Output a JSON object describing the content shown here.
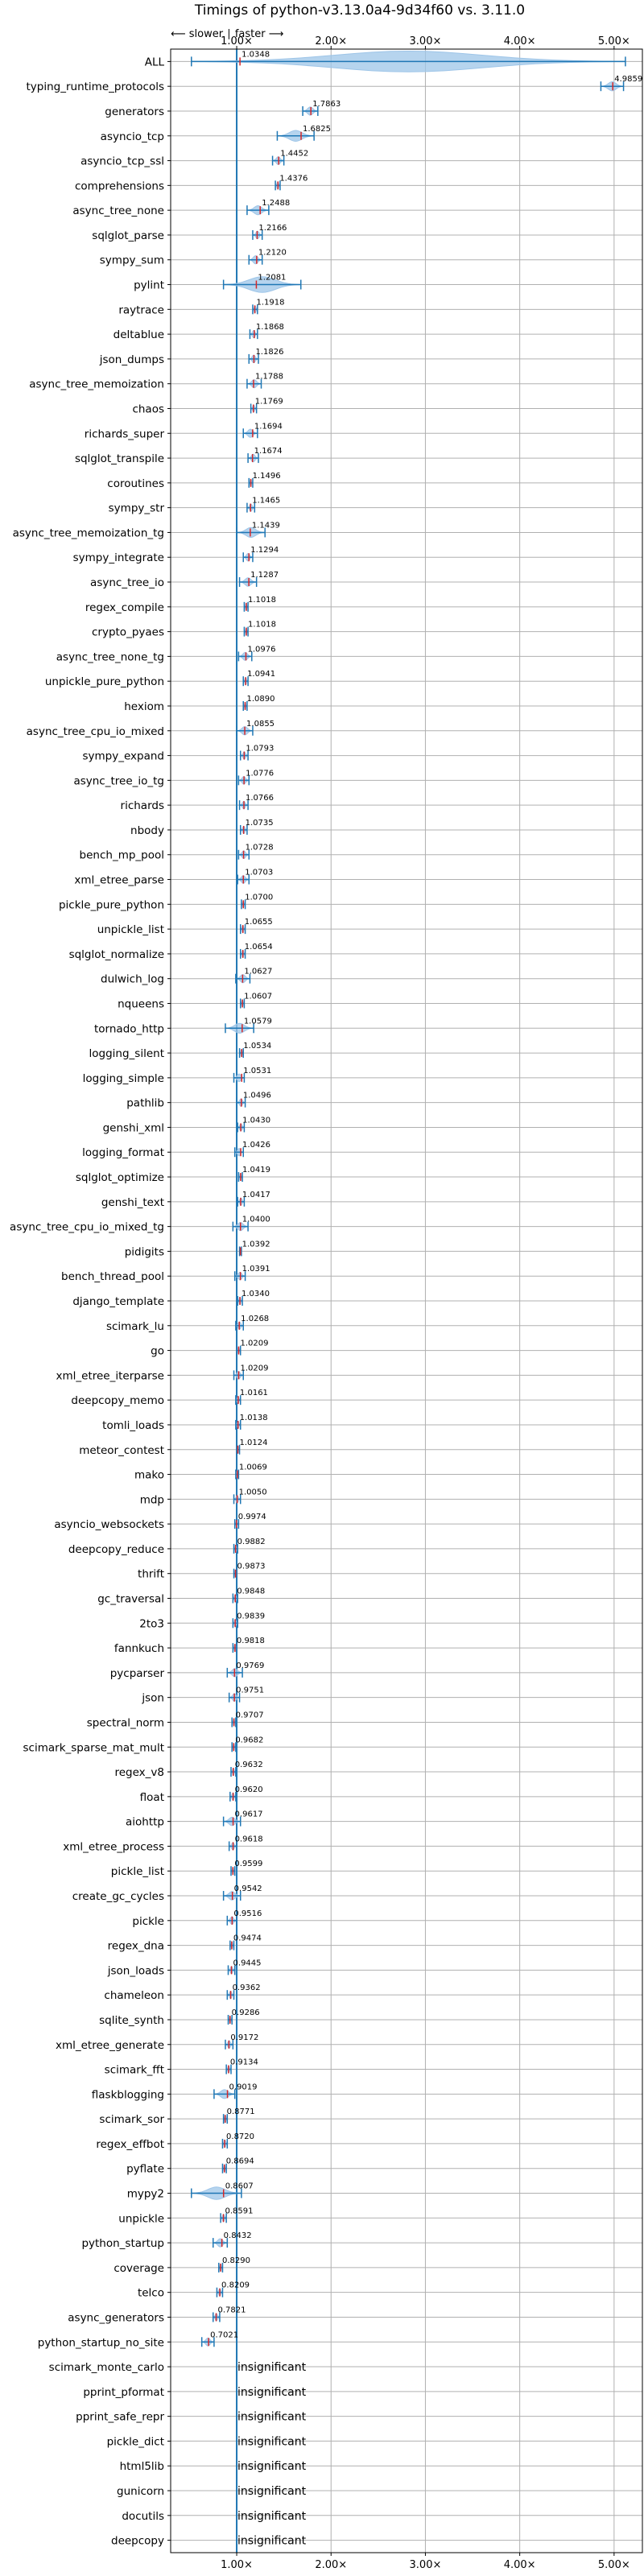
{
  "chart_data": {
    "type": "violin",
    "title": "Timings of python-v3.13.0a4-9d34f60 vs. 3.11.0",
    "direction_label": "⟵ slower ∣ faster ⟶",
    "x_ticks": [
      "1.00×",
      "2.00×",
      "3.00×",
      "4.00×",
      "5.00×"
    ],
    "x_tick_values": [
      1,
      2,
      3,
      4,
      5
    ],
    "xlim": [
      0.3,
      5.3
    ],
    "reference_line": 1.0,
    "grid": true,
    "insignificant_label": "insignificant",
    "accent_color": "#1f77b4",
    "violin_color": "#9ec5e8",
    "mean_color": "#d62728",
    "rows": [
      {
        "name": "ALL",
        "label": "1.0348",
        "value": 1.0348,
        "lo": 0.52,
        "hi": 5.12
      },
      {
        "name": "typing_runtime_protocols",
        "label": "4.9859",
        "value": 4.9859,
        "lo": 4.86,
        "hi": 5.1
      },
      {
        "name": "generators",
        "label": "1.7863",
        "value": 1.7863,
        "lo": 1.7,
        "hi": 1.86
      },
      {
        "name": "asyncio_tcp",
        "label": "1.6825",
        "value": 1.6825,
        "lo": 1.43,
        "hi": 1.82
      },
      {
        "name": "asyncio_tcp_ssl",
        "label": "1.4452",
        "value": 1.4452,
        "lo": 1.38,
        "hi": 1.5
      },
      {
        "name": "comprehensions",
        "label": "1.4376",
        "value": 1.4376,
        "lo": 1.41,
        "hi": 1.46
      },
      {
        "name": "async_tree_none",
        "label": "1.2488",
        "value": 1.2488,
        "lo": 1.11,
        "hi": 1.34
      },
      {
        "name": "sqlglot_parse",
        "label": "1.2166",
        "value": 1.2166,
        "lo": 1.17,
        "hi": 1.27
      },
      {
        "name": "sympy_sum",
        "label": "1.2120",
        "value": 1.212,
        "lo": 1.13,
        "hi": 1.27
      },
      {
        "name": "pylint",
        "label": "1.2081",
        "value": 1.2081,
        "lo": 0.86,
        "hi": 1.68
      },
      {
        "name": "raytrace",
        "label": "1.1918",
        "value": 1.1918,
        "lo": 1.17,
        "hi": 1.22
      },
      {
        "name": "deltablue",
        "label": "1.1868",
        "value": 1.1868,
        "lo": 1.14,
        "hi": 1.22
      },
      {
        "name": "json_dumps",
        "label": "1.1826",
        "value": 1.1826,
        "lo": 1.13,
        "hi": 1.23
      },
      {
        "name": "async_tree_memoization",
        "label": "1.1788",
        "value": 1.1788,
        "lo": 1.11,
        "hi": 1.26
      },
      {
        "name": "chaos",
        "label": "1.1769",
        "value": 1.1769,
        "lo": 1.15,
        "hi": 1.21
      },
      {
        "name": "richards_super",
        "label": "1.1694",
        "value": 1.1694,
        "lo": 1.07,
        "hi": 1.22
      },
      {
        "name": "sqlglot_transpile",
        "label": "1.1674",
        "value": 1.1674,
        "lo": 1.12,
        "hi": 1.23
      },
      {
        "name": "coroutines",
        "label": "1.1496",
        "value": 1.1496,
        "lo": 1.13,
        "hi": 1.17
      },
      {
        "name": "sympy_str",
        "label": "1.1465",
        "value": 1.1465,
        "lo": 1.11,
        "hi": 1.19
      },
      {
        "name": "async_tree_memoization_tg",
        "label": "1.1439",
        "value": 1.1439,
        "lo": 1.0,
        "hi": 1.3
      },
      {
        "name": "sympy_integrate",
        "label": "1.1294",
        "value": 1.1294,
        "lo": 1.07,
        "hi": 1.17
      },
      {
        "name": "async_tree_io",
        "label": "1.1287",
        "value": 1.1287,
        "lo": 1.03,
        "hi": 1.21
      },
      {
        "name": "regex_compile",
        "label": "1.1018",
        "value": 1.1018,
        "lo": 1.08,
        "hi": 1.12
      },
      {
        "name": "crypto_pyaes",
        "label": "1.1018",
        "value": 1.1018,
        "lo": 1.08,
        "hi": 1.12
      },
      {
        "name": "async_tree_none_tg",
        "label": "1.0976",
        "value": 1.0976,
        "lo": 1.02,
        "hi": 1.16
      },
      {
        "name": "unpickle_pure_python",
        "label": "1.0941",
        "value": 1.0941,
        "lo": 1.07,
        "hi": 1.12
      },
      {
        "name": "hexiom",
        "label": "1.0890",
        "value": 1.089,
        "lo": 1.07,
        "hi": 1.11
      },
      {
        "name": "async_tree_cpu_io_mixed",
        "label": "1.0855",
        "value": 1.0855,
        "lo": 1.0,
        "hi": 1.17
      },
      {
        "name": "sympy_expand",
        "label": "1.0793",
        "value": 1.0793,
        "lo": 1.04,
        "hi": 1.12
      },
      {
        "name": "async_tree_io_tg",
        "label": "1.0776",
        "value": 1.0776,
        "lo": 1.02,
        "hi": 1.13
      },
      {
        "name": "richards",
        "label": "1.0766",
        "value": 1.0766,
        "lo": 1.03,
        "hi": 1.12
      },
      {
        "name": "nbody",
        "label": "1.0735",
        "value": 1.0735,
        "lo": 1.04,
        "hi": 1.11
      },
      {
        "name": "bench_mp_pool",
        "label": "1.0728",
        "value": 1.0728,
        "lo": 1.02,
        "hi": 1.13
      },
      {
        "name": "xml_etree_parse",
        "label": "1.0703",
        "value": 1.0703,
        "lo": 1.01,
        "hi": 1.13
      },
      {
        "name": "pickle_pure_python",
        "label": "1.0700",
        "value": 1.07,
        "lo": 1.05,
        "hi": 1.09
      },
      {
        "name": "unpickle_list",
        "label": "1.0655",
        "value": 1.0655,
        "lo": 1.04,
        "hi": 1.09
      },
      {
        "name": "sqlglot_normalize",
        "label": "1.0654",
        "value": 1.0654,
        "lo": 1.04,
        "hi": 1.09
      },
      {
        "name": "dulwich_log",
        "label": "1.0627",
        "value": 1.0627,
        "lo": 0.99,
        "hi": 1.14
      },
      {
        "name": "nqueens",
        "label": "1.0607",
        "value": 1.0607,
        "lo": 1.04,
        "hi": 1.08
      },
      {
        "name": "tornado_http",
        "label": "1.0579",
        "value": 1.0579,
        "lo": 0.88,
        "hi": 1.18
      },
      {
        "name": "logging_silent",
        "label": "1.0534",
        "value": 1.0534,
        "lo": 1.03,
        "hi": 1.07
      },
      {
        "name": "logging_simple",
        "label": "1.0531",
        "value": 1.0531,
        "lo": 0.97,
        "hi": 1.08
      },
      {
        "name": "pathlib",
        "label": "1.0496",
        "value": 1.0496,
        "lo": 1.0,
        "hi": 1.09
      },
      {
        "name": "genshi_xml",
        "label": "1.0430",
        "value": 1.043,
        "lo": 1.01,
        "hi": 1.08
      },
      {
        "name": "logging_format",
        "label": "1.0426",
        "value": 1.0426,
        "lo": 0.98,
        "hi": 1.07
      },
      {
        "name": "sqlglot_optimize",
        "label": "1.0419",
        "value": 1.0419,
        "lo": 1.02,
        "hi": 1.06
      },
      {
        "name": "genshi_text",
        "label": "1.0417",
        "value": 1.0417,
        "lo": 1.01,
        "hi": 1.08
      },
      {
        "name": "async_tree_cpu_io_mixed_tg",
        "label": "1.0400",
        "value": 1.04,
        "lo": 0.96,
        "hi": 1.12
      },
      {
        "name": "pidigits",
        "label": "1.0392",
        "value": 1.0392,
        "lo": 1.03,
        "hi": 1.05
      },
      {
        "name": "bench_thread_pool",
        "label": "1.0391",
        "value": 1.0391,
        "lo": 0.98,
        "hi": 1.09
      },
      {
        "name": "django_template",
        "label": "1.0340",
        "value": 1.034,
        "lo": 1.01,
        "hi": 1.06
      },
      {
        "name": "scimark_lu",
        "label": "1.0268",
        "value": 1.0268,
        "lo": 0.99,
        "hi": 1.07
      },
      {
        "name": "go",
        "label": "1.0209",
        "value": 1.0209,
        "lo": 1.0,
        "hi": 1.04
      },
      {
        "name": "xml_etree_iterparse",
        "label": "1.0209",
        "value": 1.0209,
        "lo": 0.97,
        "hi": 1.07
      },
      {
        "name": "deepcopy_memo",
        "label": "1.0161",
        "value": 1.0161,
        "lo": 0.99,
        "hi": 1.04
      },
      {
        "name": "tomli_loads",
        "label": "1.0138",
        "value": 1.0138,
        "lo": 0.99,
        "hi": 1.04
      },
      {
        "name": "meteor_contest",
        "label": "1.0124",
        "value": 1.0124,
        "lo": 1.0,
        "hi": 1.03
      },
      {
        "name": "mako",
        "label": "1.0069",
        "value": 1.0069,
        "lo": 0.99,
        "hi": 1.02
      },
      {
        "name": "mdp",
        "label": "1.0050",
        "value": 1.005,
        "lo": 0.97,
        "hi": 1.04
      },
      {
        "name": "asyncio_websockets",
        "label": "0.9974",
        "value": 0.9974,
        "lo": 0.98,
        "hi": 1.02
      },
      {
        "name": "deepcopy_reduce",
        "label": "0.9882",
        "value": 0.9882,
        "lo": 0.97,
        "hi": 1.01
      },
      {
        "name": "thrift",
        "label": "0.9873",
        "value": 0.9873,
        "lo": 0.97,
        "hi": 1.0
      },
      {
        "name": "gc_traversal",
        "label": "0.9848",
        "value": 0.9848,
        "lo": 0.96,
        "hi": 1.01
      },
      {
        "name": "2to3",
        "label": "0.9839",
        "value": 0.9839,
        "lo": 0.96,
        "hi": 1.01
      },
      {
        "name": "fannkuch",
        "label": "0.9818",
        "value": 0.9818,
        "lo": 0.96,
        "hi": 1.0
      },
      {
        "name": "pycparser",
        "label": "0.9769",
        "value": 0.9769,
        "lo": 0.9,
        "hi": 1.06
      },
      {
        "name": "json",
        "label": "0.9751",
        "value": 0.9751,
        "lo": 0.92,
        "hi": 1.03
      },
      {
        "name": "spectral_norm",
        "label": "0.9707",
        "value": 0.9707,
        "lo": 0.95,
        "hi": 0.99
      },
      {
        "name": "scimark_sparse_mat_mult",
        "label": "0.9682",
        "value": 0.9682,
        "lo": 0.95,
        "hi": 0.99
      },
      {
        "name": "regex_v8",
        "label": "0.9632",
        "value": 0.9632,
        "lo": 0.94,
        "hi": 0.99
      },
      {
        "name": "float",
        "label": "0.9620",
        "value": 0.962,
        "lo": 0.93,
        "hi": 0.99
      },
      {
        "name": "aiohttp",
        "label": "0.9617",
        "value": 0.9617,
        "lo": 0.86,
        "hi": 1.04
      },
      {
        "name": "xml_etree_process",
        "label": "0.9618",
        "value": 0.9618,
        "lo": 0.92,
        "hi": 1.0
      },
      {
        "name": "pickle_list",
        "label": "0.9599",
        "value": 0.9599,
        "lo": 0.94,
        "hi": 0.98
      },
      {
        "name": "create_gc_cycles",
        "label": "0.9542",
        "value": 0.9542,
        "lo": 0.86,
        "hi": 1.04
      },
      {
        "name": "pickle",
        "label": "0.9516",
        "value": 0.9516,
        "lo": 0.9,
        "hi": 1.0
      },
      {
        "name": "regex_dna",
        "label": "0.9474",
        "value": 0.9474,
        "lo": 0.93,
        "hi": 0.97
      },
      {
        "name": "json_loads",
        "label": "0.9445",
        "value": 0.9445,
        "lo": 0.91,
        "hi": 0.98
      },
      {
        "name": "chameleon",
        "label": "0.9362",
        "value": 0.9362,
        "lo": 0.9,
        "hi": 0.97
      },
      {
        "name": "sqlite_synth",
        "label": "0.9286",
        "value": 0.9286,
        "lo": 0.91,
        "hi": 0.95
      },
      {
        "name": "xml_etree_generate",
        "label": "0.9172",
        "value": 0.9172,
        "lo": 0.88,
        "hi": 0.96
      },
      {
        "name": "scimark_fft",
        "label": "0.9134",
        "value": 0.9134,
        "lo": 0.89,
        "hi": 0.94
      },
      {
        "name": "flaskblogging",
        "label": "0.9019",
        "value": 0.9019,
        "lo": 0.76,
        "hi": 0.98
      },
      {
        "name": "scimark_sor",
        "label": "0.8771",
        "value": 0.8771,
        "lo": 0.86,
        "hi": 0.9
      },
      {
        "name": "regex_effbot",
        "label": "0.8720",
        "value": 0.872,
        "lo": 0.85,
        "hi": 0.9
      },
      {
        "name": "pyflate",
        "label": "0.8694",
        "value": 0.8694,
        "lo": 0.85,
        "hi": 0.89
      },
      {
        "name": "mypy2",
        "label": "0.8607",
        "value": 0.8607,
        "lo": 0.52,
        "hi": 1.05
      },
      {
        "name": "unpickle",
        "label": "0.8591",
        "value": 0.8591,
        "lo": 0.83,
        "hi": 0.89
      },
      {
        "name": "python_startup",
        "label": "0.8432",
        "value": 0.8432,
        "lo": 0.75,
        "hi": 0.9
      },
      {
        "name": "coverage",
        "label": "0.8290",
        "value": 0.829,
        "lo": 0.81,
        "hi": 0.85
      },
      {
        "name": "telco",
        "label": "0.8209",
        "value": 0.8209,
        "lo": 0.79,
        "hi": 0.85
      },
      {
        "name": "async_generators",
        "label": "0.7821",
        "value": 0.7821,
        "lo": 0.75,
        "hi": 0.82
      },
      {
        "name": "python_startup_no_site",
        "label": "0.7021",
        "value": 0.7021,
        "lo": 0.63,
        "hi": 0.76
      },
      {
        "name": "scimark_monte_carlo",
        "insignificant": true
      },
      {
        "name": "pprint_pformat",
        "insignificant": true
      },
      {
        "name": "pprint_safe_repr",
        "insignificant": true
      },
      {
        "name": "pickle_dict",
        "insignificant": true
      },
      {
        "name": "html5lib",
        "insignificant": true
      },
      {
        "name": "gunicorn",
        "insignificant": true
      },
      {
        "name": "docutils",
        "insignificant": true
      },
      {
        "name": "deepcopy",
        "insignificant": true
      }
    ]
  }
}
